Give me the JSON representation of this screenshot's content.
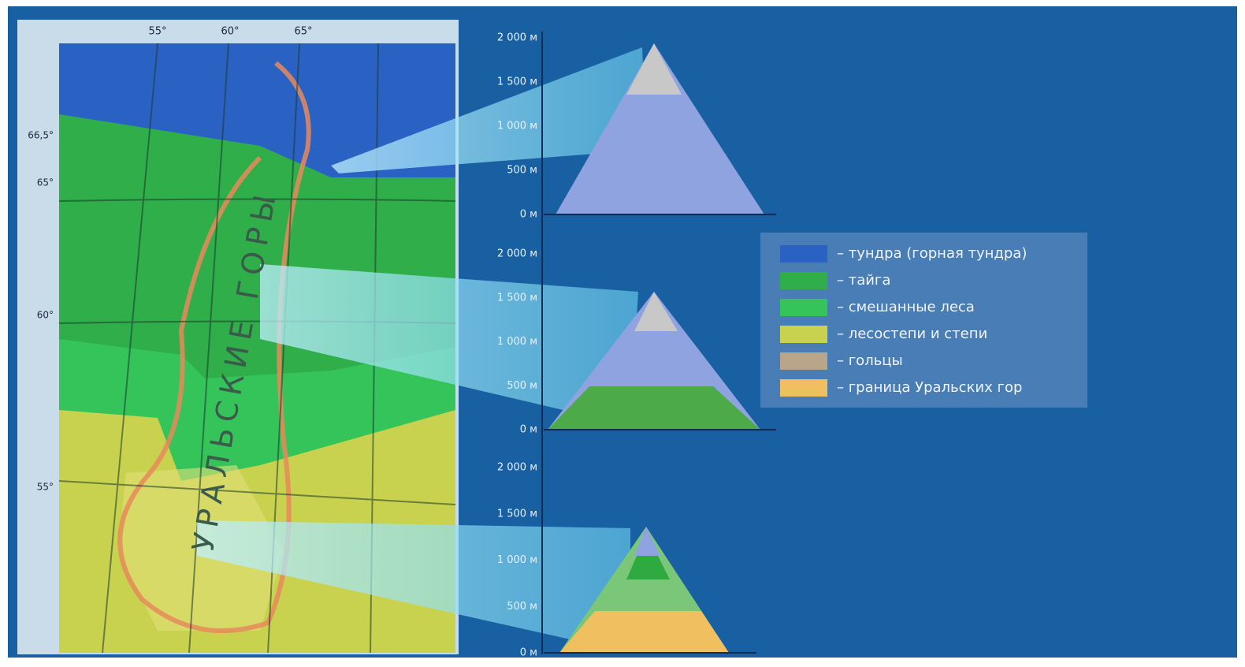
{
  "map": {
    "title": "УРАЛЬСКИЕ ГОРЫ",
    "longitudes": [
      "55°",
      "60°",
      "65°"
    ],
    "latitudes": [
      "66,5°",
      "65°",
      "60°",
      "55°"
    ]
  },
  "profiles": [
    {
      "scale": [
        "2 000 м",
        "1 500 м",
        "1 000 м",
        "500 м",
        "0 м"
      ]
    },
    {
      "scale": [
        "2 000 м",
        "1 500 м",
        "1 000 м",
        "500 м",
        "0 м"
      ]
    },
    {
      "scale": [
        "2 000 м",
        "1 500 м",
        "1 000 м",
        "500 м",
        "0 м"
      ]
    }
  ],
  "legend": [
    "– тундра (горная тундра)",
    "– тайга",
    "– смешанные леса",
    "– лесостепи и степи",
    "– гольцы",
    "– граница Уральских гор"
  ]
}
